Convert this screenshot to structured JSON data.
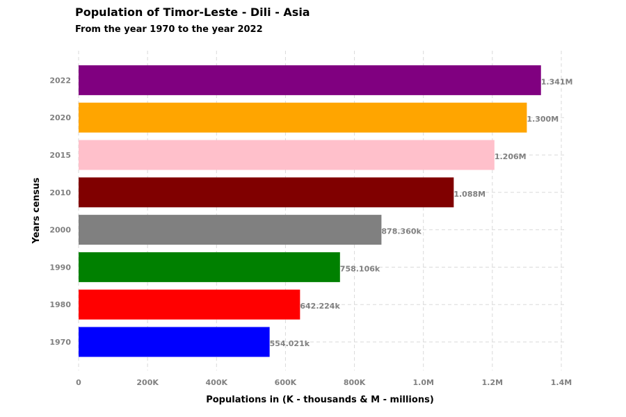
{
  "chart_data": {
    "type": "bar",
    "orientation": "horizontal",
    "title": "Population of Timor-Leste - Dili - Asia",
    "subtitle": "From the year 1970 to the year 2022",
    "xlabel": "Populations in (K - thousands & M - millions)",
    "ylabel": "Years census",
    "categories": [
      "1970",
      "1980",
      "1990",
      "2000",
      "2010",
      "2015",
      "2020",
      "2022"
    ],
    "values": [
      554021,
      642224,
      758106,
      878360,
      1088000,
      1206000,
      1300000,
      1341000
    ],
    "value_labels": [
      "554.021k",
      "642.224k",
      "758.106k",
      "878.360k",
      "1.088M",
      "1.206M",
      "1.300M",
      "1.341M"
    ],
    "bar_colors": [
      "#0000ff",
      "#ff0000",
      "#008000",
      "#808080",
      "#800000",
      "#ffc0cb",
      "#ffa500",
      "#800080"
    ],
    "xlim": [
      0,
      1400000
    ],
    "xticks": [
      0,
      200000,
      400000,
      600000,
      800000,
      1000000,
      1200000,
      1400000
    ],
    "xtick_labels": [
      "0",
      "200K",
      "400K",
      "600K",
      "800K",
      "1.0M",
      "1.2M",
      "1.4M"
    ],
    "grid": true
  }
}
